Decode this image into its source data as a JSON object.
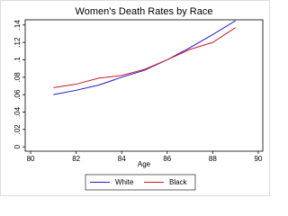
{
  "chart_data": {
    "type": "line",
    "title": "Women's Death Rates by Race",
    "x_label": "Age",
    "x": [
      81,
      82,
      83,
      84,
      85,
      86,
      87,
      88,
      89
    ],
    "series": [
      {
        "name": "White",
        "color": "#1a1acc",
        "values": [
          0.06,
          0.065,
          0.071,
          0.08,
          0.088,
          0.1,
          0.114,
          0.129,
          0.145
        ]
      },
      {
        "name": "Black",
        "color": "#cc1a2a",
        "values": [
          0.068,
          0.072,
          0.079,
          0.082,
          0.089,
          0.1,
          0.112,
          0.12,
          0.137
        ]
      }
    ],
    "xlim": [
      79.76,
      90.2
    ],
    "xticks": [
      80,
      82,
      84,
      86,
      88,
      90
    ],
    "ylim": [
      -0.005,
      0.146
    ],
    "yticks": [
      0,
      {
        "value": 0.02,
        "label": ".02"
      },
      {
        "value": 0.04,
        "label": ".04"
      },
      {
        "value": 0.06,
        "label": ".06"
      },
      {
        "value": 0.08,
        "label": ".08"
      },
      {
        "value": 0.1,
        "label": ".1"
      },
      {
        "value": 0.12,
        "label": ".12"
      },
      {
        "value": 0.14,
        "label": ".14"
      }
    ],
    "legend": "bottom"
  }
}
